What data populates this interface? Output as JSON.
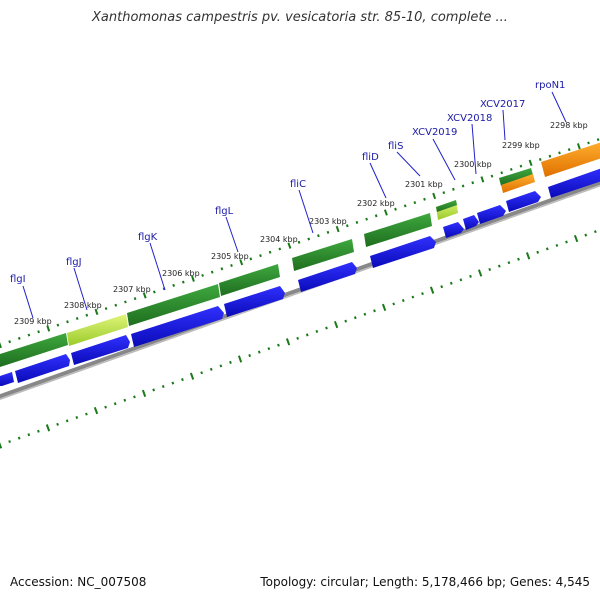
{
  "title": "Xanthomonas campestris pv. vesicatoria str. 85-10, complete ...",
  "footer": {
    "accession": "Accession: NC_007508",
    "summary": "Topology: circular; Length: 5,178,466 bp; Genes: 4,545"
  },
  "colors": {
    "gene_arrow": "#1010e0",
    "cds_green": "#2e8b2e",
    "cds_lightgreen": "#b8e04a",
    "cds_orange": "#ff8c00",
    "ticks": "#1a7a1a",
    "backbone": "#888888",
    "label": "#1a1aa6"
  },
  "scale": {
    "unit": "kbp",
    "tick_labels": [
      "2298 kbp",
      "2299 kbp",
      "2300 kbp",
      "2301 kbp",
      "2302 kbp",
      "2303 kbp",
      "2304 kbp",
      "2305 kbp",
      "2306 kbp",
      "2307 kbp",
      "2308 kbp",
      "2309 kbp"
    ]
  },
  "genes": [
    {
      "name": "flgI",
      "color": "cds_green"
    },
    {
      "name": "flgJ",
      "color": "cds_lightgreen"
    },
    {
      "name": "flgK",
      "color": "cds_green"
    },
    {
      "name": "flgL",
      "color": "cds_green"
    },
    {
      "name": "fliC",
      "color": "cds_green"
    },
    {
      "name": "fliD",
      "color": "cds_green"
    },
    {
      "name": "fliS",
      "color": "cds_lightgreen"
    },
    {
      "name": "XCV2019",
      "color": "cds_green"
    },
    {
      "name": "XCV2018",
      "color": "cds_green"
    },
    {
      "name": "XCV2017",
      "color": "cds_green"
    },
    {
      "name": "rpoN1",
      "color": "cds_orange"
    }
  ]
}
